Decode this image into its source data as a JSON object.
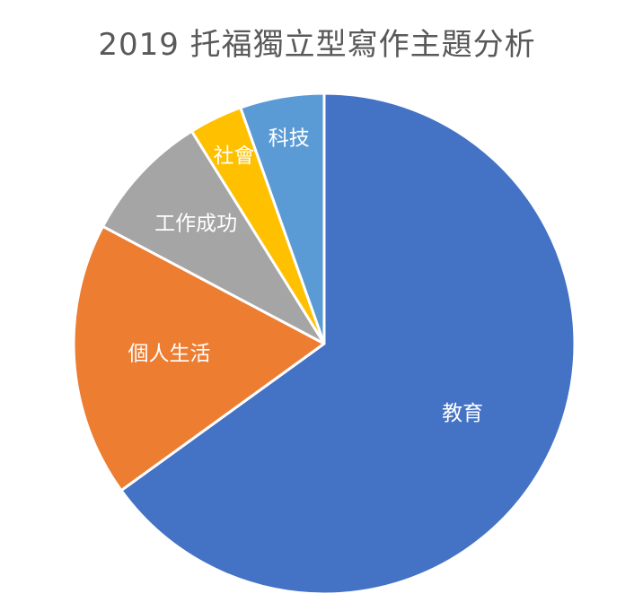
{
  "chart_data": {
    "type": "pie",
    "title": "2019 托福獨立型寫作主題分析",
    "categories": [
      "教育",
      "個人生活",
      "工作成功",
      "社會",
      "科技"
    ],
    "values": [
      66,
      18,
      8.5,
      3.5,
      5.5
    ],
    "colors": [
      "#4472C4",
      "#ED7D31",
      "#A5A5A5",
      "#FFC000",
      "#5B9BD5"
    ],
    "start_angle_deg": 0,
    "direction": "clockwise",
    "legend": "none",
    "data_labels": "category name inside slice"
  }
}
